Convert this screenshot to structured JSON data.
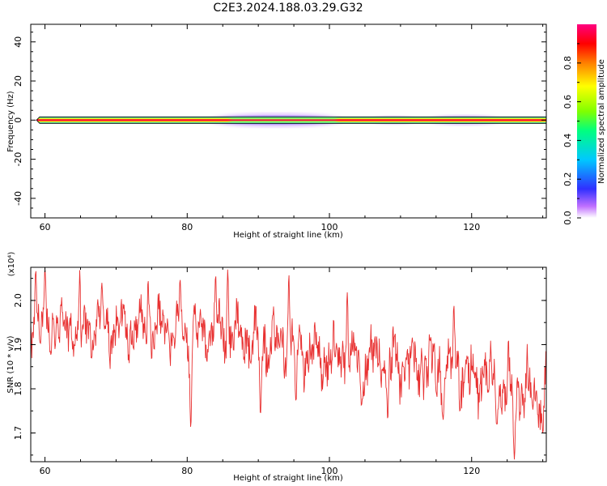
{
  "title": "C2E3.2024.188.03.29.G32",
  "chart_data": [
    {
      "type": "heatmap",
      "xlabel": "Height of straight line (km)",
      "ylabel": "Frequency (Hz)",
      "xlim": [
        58,
        130.5
      ],
      "ylim": [
        -50,
        49
      ],
      "xticks": [
        60,
        80,
        100,
        120
      ],
      "yticks": [
        -40,
        -20,
        0,
        20,
        40
      ],
      "colorbar": {
        "label": "Normalized spectral amplitude",
        "range": [
          0,
          1
        ],
        "ticks": [
          0.0,
          0.2,
          0.4,
          0.6,
          0.8
        ],
        "colors": [
          "#ffffff",
          "#b050ff",
          "#3030ff",
          "#00c8ff",
          "#00ff80",
          "#80ff00",
          "#ffff00",
          "#ff8000",
          "#ff0000",
          "#ff0080"
        ]
      },
      "band": {
        "center_freq": 0,
        "x_start": 58.8,
        "x_end": 130.5,
        "spread_regions": [
          {
            "x": [
              83,
              102
            ],
            "freq_halfwidth": 3.5
          },
          {
            "x": [
              106,
              112
            ],
            "freq_halfwidth": 2
          },
          {
            "x": [
              114,
              124
            ],
            "freq_halfwidth": 2.5
          }
        ]
      }
    },
    {
      "type": "line",
      "xlabel": "Height of straight line (km)",
      "ylabel": "SNR (10 * v/v)",
      "scale_label": "(x10⁴)",
      "xlim": [
        58,
        130.5
      ],
      "ylim": [
        1.635,
        2.075
      ],
      "xticks": [
        60,
        80,
        100,
        120
      ],
      "yticks": [
        1.7,
        1.8,
        1.9,
        2.0
      ],
      "color": "#e83030",
      "trend": {
        "x": [
          58,
          70,
          80,
          90,
          100,
          110,
          120,
          126,
          130.5
        ],
        "y": [
          1.945,
          1.935,
          1.935,
          1.91,
          1.875,
          1.86,
          1.83,
          1.8,
          1.79
        ]
      },
      "dips": [
        {
          "x": 65.0,
          "y": 1.81
        },
        {
          "x": 80.5,
          "y": 1.71
        },
        {
          "x": 90.3,
          "y": 1.74
        },
        {
          "x": 95.3,
          "y": 1.77
        },
        {
          "x": 104.5,
          "y": 1.76
        },
        {
          "x": 108.2,
          "y": 1.73
        },
        {
          "x": 116.0,
          "y": 1.73
        },
        {
          "x": 123.5,
          "y": 1.72
        },
        {
          "x": 126.0,
          "y": 1.64
        },
        {
          "x": 130.0,
          "y": 1.7
        }
      ],
      "peaks": [
        {
          "x": 58.7,
          "y": 2.07
        },
        {
          "x": 60.0,
          "y": 2.07
        },
        {
          "x": 64.9,
          "y": 2.07
        },
        {
          "x": 68.0,
          "y": 2.04
        },
        {
          "x": 74.5,
          "y": 2.05
        },
        {
          "x": 79.0,
          "y": 2.05
        },
        {
          "x": 84.0,
          "y": 2.06
        },
        {
          "x": 85.7,
          "y": 2.07
        },
        {
          "x": 94.3,
          "y": 2.06
        },
        {
          "x": 102.5,
          "y": 2.02
        },
        {
          "x": 117.5,
          "y": 1.99
        }
      ]
    }
  ]
}
